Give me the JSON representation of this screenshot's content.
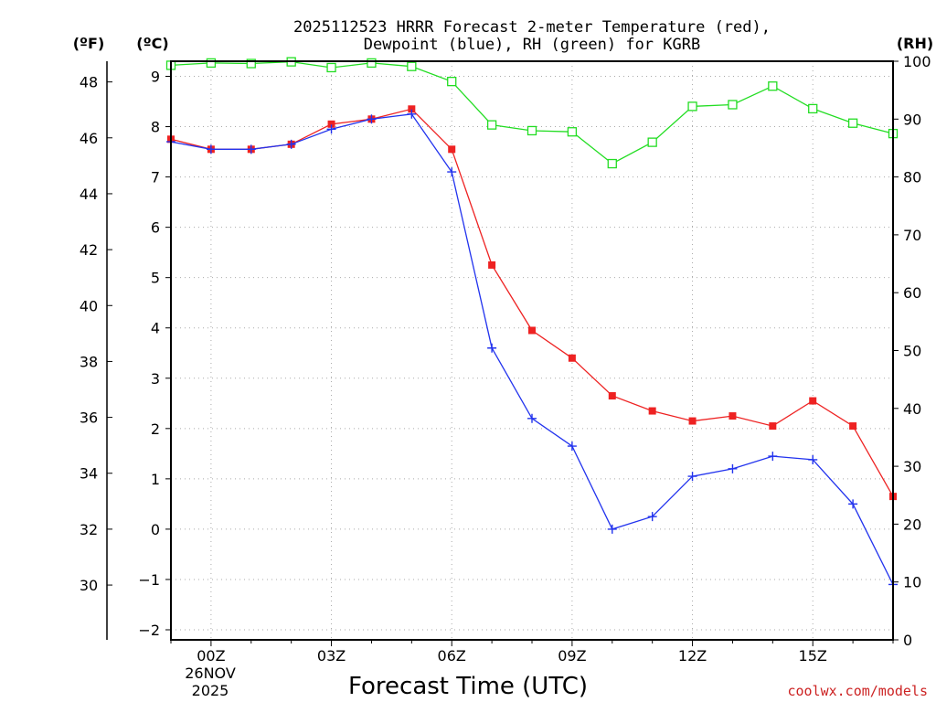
{
  "chart_data": {
    "type": "line",
    "title_line1": "2025112523 HRRR Forecast 2-meter Temperature (red),",
    "title_line2": "Dewpoint (blue), RH (green) for KGRB",
    "xlabel": "Forecast Time (UTC)",
    "credit": "coolwx.com/models",
    "units": {
      "fahrenheit": "(ºF)",
      "celsius": "(ºC)",
      "rh": "(RH)"
    },
    "hours": [
      -1,
      0,
      1,
      2,
      3,
      4,
      5,
      6,
      7,
      8,
      9,
      10,
      11,
      12,
      13,
      14,
      15,
      16,
      17
    ],
    "x_ticks": [
      {
        "hour": 0,
        "label": "00Z"
      },
      {
        "hour": 3,
        "label": "03Z"
      },
      {
        "hour": 6,
        "label": "06Z"
      },
      {
        "hour": 9,
        "label": "09Z"
      },
      {
        "hour": 12,
        "label": "12Z"
      },
      {
        "hour": 15,
        "label": "15Z"
      }
    ],
    "date_label": {
      "day": "26NOV",
      "year": "2025"
    },
    "xlim": [
      -1,
      17
    ],
    "ylim_c": [
      -2.2,
      9.3
    ],
    "ylim_rh": [
      0,
      100
    ],
    "c_ticks": [
      -2,
      -1,
      0,
      1,
      2,
      3,
      4,
      5,
      6,
      7,
      8,
      9
    ],
    "f_ticks": [
      30,
      32,
      34,
      36,
      38,
      40,
      42,
      44,
      46,
      48
    ],
    "rh_ticks": [
      0,
      10,
      20,
      30,
      40,
      50,
      60,
      70,
      80,
      90,
      100
    ],
    "series": [
      {
        "name": "Temperature",
        "unit": "C",
        "color": "#ee2222",
        "marker": "square",
        "values": [
          7.75,
          7.55,
          7.55,
          7.65,
          8.05,
          8.15,
          8.35,
          7.55,
          5.25,
          3.95,
          3.4,
          2.65,
          2.35,
          2.15,
          2.25,
          2.05,
          2.55,
          2.05,
          0.65
        ]
      },
      {
        "name": "Dewpoint",
        "unit": "C",
        "color": "#2233ee",
        "marker": "plus",
        "values": [
          7.7,
          7.55,
          7.55,
          7.65,
          7.95,
          8.15,
          8.25,
          7.1,
          3.6,
          2.2,
          1.65,
          0.0,
          0.25,
          1.05,
          1.2,
          1.45,
          1.38,
          0.5,
          -1.1
        ]
      },
      {
        "name": "RH",
        "unit": "%",
        "color": "#22dd22",
        "marker": "open-square",
        "values": [
          99.3,
          99.7,
          99.6,
          99.9,
          98.9,
          99.7,
          99.1,
          96.5,
          89.0,
          88.0,
          87.8,
          82.3,
          86.0,
          92.2,
          92.5,
          95.7,
          91.8,
          89.3,
          87.5
        ]
      }
    ]
  }
}
